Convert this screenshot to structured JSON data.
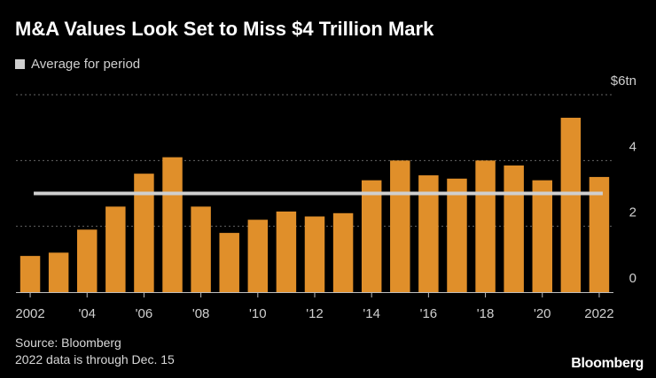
{
  "header": {
    "title": "M&A Values Look Set to Miss $4 Trillion Mark",
    "legend_label": "Average for period"
  },
  "footer": {
    "source": "Source: Bloomberg",
    "note": "2022 data is through Dec. 15",
    "brand": "Bloomberg"
  },
  "colors": {
    "background": "#000000",
    "bar": "#e08f2a",
    "average_line": "#cfcfcf",
    "grid": "#666666",
    "text": "#cfcfcf"
  },
  "chart_data": {
    "type": "bar",
    "title": "M&A Values Look Set to Miss $4 Trillion Mark",
    "xlabel": "",
    "ylabel": "",
    "ylim": [
      0,
      6
    ],
    "y_unit": "trillion USD",
    "categories": [
      "2002",
      "2003",
      "2004",
      "2005",
      "2006",
      "2007",
      "2008",
      "2009",
      "2010",
      "2011",
      "2012",
      "2013",
      "2014",
      "2015",
      "2016",
      "2017",
      "2018",
      "2019",
      "2020",
      "2021",
      "2022"
    ],
    "series": [
      {
        "name": "M&A value",
        "values": [
          1.1,
          1.2,
          1.9,
          2.6,
          3.6,
          4.1,
          2.6,
          1.8,
          2.2,
          2.45,
          2.3,
          2.4,
          3.4,
          4.0,
          3.55,
          3.45,
          4.0,
          3.85,
          3.4,
          5.3,
          3.5
        ]
      }
    ],
    "average": {
      "name": "Average for period",
      "value": 3.0
    },
    "x_tick_labels": [
      "2002",
      "'04",
      "'06",
      "'08",
      "'10",
      "'12",
      "'14",
      "'16",
      "'18",
      "'20",
      "2022"
    ],
    "x_tick_years": [
      "2002",
      "2004",
      "2006",
      "2008",
      "2010",
      "2012",
      "2014",
      "2016",
      "2018",
      "2020",
      "2022"
    ],
    "y_ticks": [
      0,
      2,
      4,
      6
    ],
    "y_tick_labels": [
      "0",
      "2",
      "4",
      "$6tn"
    ],
    "gridlines": "dotted horizontal",
    "legend_position": "top-left"
  }
}
